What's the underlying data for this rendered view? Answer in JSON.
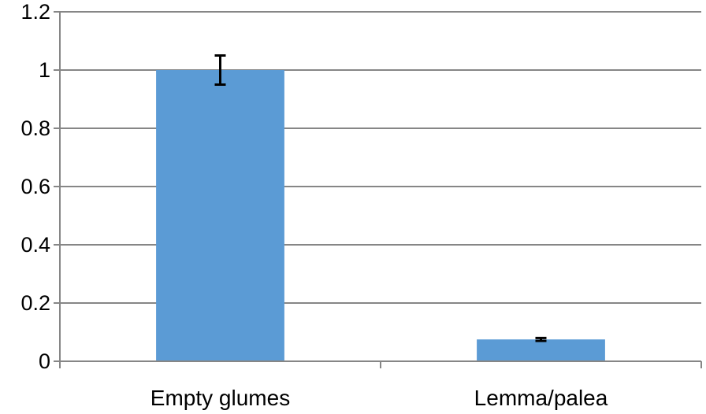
{
  "chart_data": {
    "type": "bar",
    "categories": [
      "Empty glumes",
      "Lemma/palea"
    ],
    "values": [
      1.0,
      0.075
    ],
    "errors": [
      0.05,
      0.005
    ],
    "ylim": [
      0,
      1.2
    ],
    "yticks": [
      0,
      0.2,
      0.4,
      0.6,
      0.8,
      1,
      1.2
    ],
    "ytick_labels": [
      "0",
      "0.2",
      "0.4",
      "0.6",
      "0.8",
      "1",
      "1.2"
    ],
    "title": "",
    "xlabel": "",
    "ylabel": "",
    "grid": true,
    "legend": "none",
    "bar_color": "#5b9bd5",
    "gridline_color": "#868686",
    "axis_color": "#868686",
    "errorbar_color": "#000000"
  }
}
